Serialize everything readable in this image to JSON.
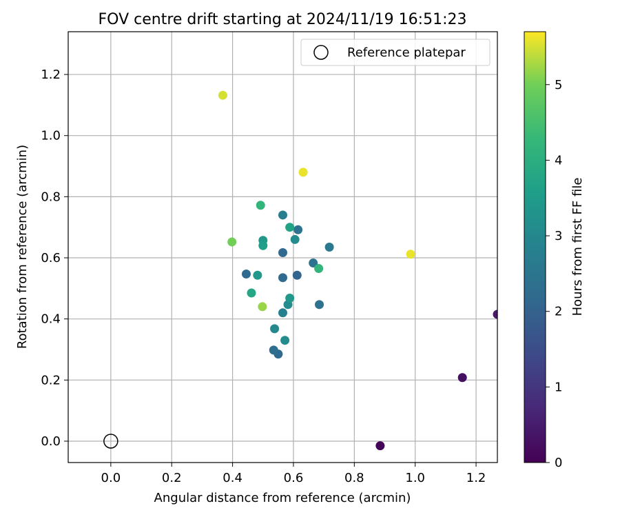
{
  "chart_data": {
    "type": "scatter",
    "title": "FOV centre drift starting at 2024/11/19 16:51:23",
    "xlabel": "Angular distance from reference (arcmin)",
    "ylabel": "Rotation from reference (arcmin)",
    "xlim": [
      -0.14,
      1.27
    ],
    "ylim": [
      -0.07,
      1.34
    ],
    "xticks": [
      "0.0",
      "0.2",
      "0.4",
      "0.6",
      "0.8",
      "1.0",
      "1.2"
    ],
    "yticks": [
      "0.0",
      "0.2",
      "0.4",
      "0.6",
      "0.8",
      "1.0",
      "1.2"
    ],
    "grid": true,
    "legend": {
      "position": "top-right",
      "entries": [
        "Reference platepar"
      ]
    },
    "reference_point": {
      "x": 0.0,
      "y": 0.0,
      "marker": "open-circle"
    },
    "colorbar": {
      "label": "Hours from first FF file",
      "colormap": "viridis",
      "range": [
        0,
        5.7
      ],
      "ticks": [
        "0",
        "1",
        "2",
        "3",
        "4",
        "5"
      ]
    },
    "points": [
      {
        "x": 0.885,
        "y": -0.015,
        "hours": 0.05
      },
      {
        "x": 1.155,
        "y": 0.208,
        "hours": 0.25
      },
      {
        "x": 1.27,
        "y": 0.415,
        "hours": 0.45
      },
      {
        "x": 0.55,
        "y": 0.285,
        "hours": 2.2
      },
      {
        "x": 0.535,
        "y": 0.298,
        "hours": 2.3
      },
      {
        "x": 0.612,
        "y": 0.543,
        "hours": 2.1
      },
      {
        "x": 0.445,
        "y": 0.547,
        "hours": 2.2
      },
      {
        "x": 0.565,
        "y": 0.535,
        "hours": 2.2
      },
      {
        "x": 0.565,
        "y": 0.617,
        "hours": 2.2
      },
      {
        "x": 0.685,
        "y": 0.447,
        "hours": 2.4
      },
      {
        "x": 0.665,
        "y": 0.583,
        "hours": 2.4
      },
      {
        "x": 0.615,
        "y": 0.692,
        "hours": 2.4
      },
      {
        "x": 0.718,
        "y": 0.635,
        "hours": 2.6
      },
      {
        "x": 0.565,
        "y": 0.74,
        "hours": 2.7
      },
      {
        "x": 0.565,
        "y": 0.42,
        "hours": 2.8
      },
      {
        "x": 0.538,
        "y": 0.368,
        "hours": 3.0
      },
      {
        "x": 0.572,
        "y": 0.33,
        "hours": 3.1
      },
      {
        "x": 0.582,
        "y": 0.447,
        "hours": 3.1
      },
      {
        "x": 0.605,
        "y": 0.66,
        "hours": 3.1
      },
      {
        "x": 0.588,
        "y": 0.468,
        "hours": 3.4
      },
      {
        "x": 0.482,
        "y": 0.543,
        "hours": 3.4
      },
      {
        "x": 0.5,
        "y": 0.657,
        "hours": 3.4
      },
      {
        "x": 0.5,
        "y": 0.64,
        "hours": 3.6
      },
      {
        "x": 0.588,
        "y": 0.7,
        "hours": 3.7
      },
      {
        "x": 0.462,
        "y": 0.485,
        "hours": 3.8
      },
      {
        "x": 0.492,
        "y": 0.772,
        "hours": 4.2
      },
      {
        "x": 0.683,
        "y": 0.565,
        "hours": 4.2
      },
      {
        "x": 0.398,
        "y": 0.652,
        "hours": 5.0
      },
      {
        "x": 0.498,
        "y": 0.44,
        "hours": 5.2
      },
      {
        "x": 0.368,
        "y": 1.132,
        "hours": 5.5
      },
      {
        "x": 0.632,
        "y": 0.88,
        "hours": 5.6
      },
      {
        "x": 0.985,
        "y": 0.612,
        "hours": 5.6
      }
    ]
  }
}
